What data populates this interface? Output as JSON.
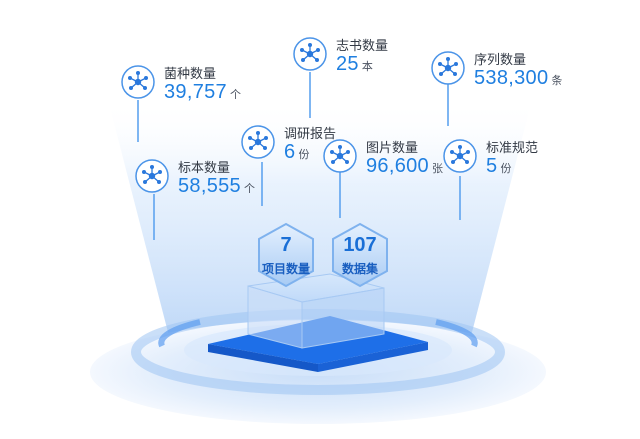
{
  "stats": [
    {
      "label": "菌种数量",
      "value": "39,757",
      "unit": "个",
      "icon": "microbe-network-icon"
    },
    {
      "label": "志书数量",
      "value": "25",
      "unit": "本",
      "icon": "microbe-network-icon"
    },
    {
      "label": "序列数量",
      "value": "538,300",
      "unit": "条",
      "icon": "microbe-network-icon"
    },
    {
      "label": "调研报告",
      "value": "6",
      "unit": "份",
      "icon": "microbe-network-icon"
    },
    {
      "label": "标本数量",
      "value": "58,555",
      "unit": "个",
      "icon": "microbe-network-icon"
    },
    {
      "label": "图片数量",
      "value": "96,600",
      "unit": "张",
      "icon": "microbe-network-icon"
    },
    {
      "label": "标准规范",
      "value": "5",
      "unit": "份",
      "icon": "microbe-network-icon"
    }
  ],
  "hexes": [
    {
      "value": "7",
      "label": "项目数量"
    },
    {
      "value": "107",
      "label": "数据集"
    }
  ],
  "colors": {
    "accent": "#1f7fe0",
    "platform": "#1e6fe8",
    "glow": "#cfe3fb"
  }
}
